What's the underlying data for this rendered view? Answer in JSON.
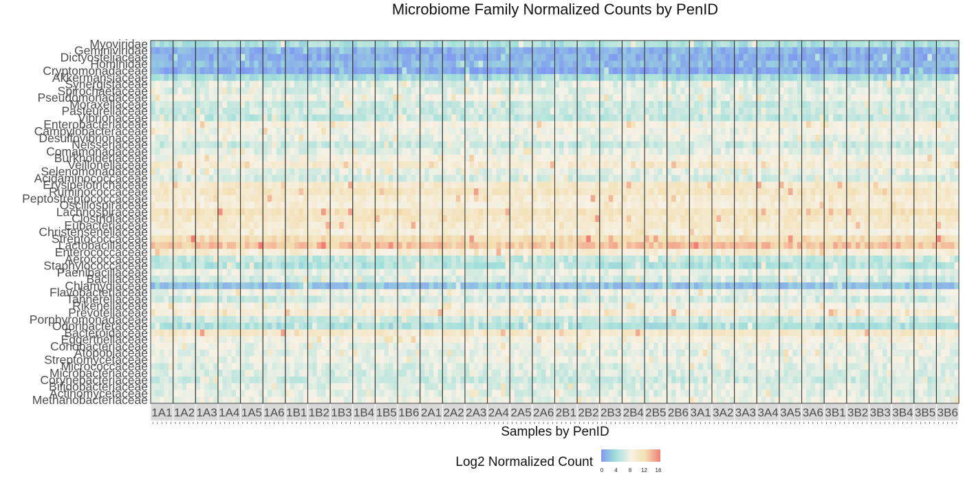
{
  "chart_data": {
    "type": "heatmap",
    "title": "Microbiome Family Normalized Counts by PenID",
    "xlabel": "Samples by PenID",
    "ylabel": "",
    "legend": {
      "title": "Log2 Normalized Count",
      "placement": "bottom",
      "ticks": [
        "0",
        "4",
        "8",
        "12",
        "16"
      ],
      "range": [
        0,
        16
      ],
      "colors": [
        "#7f9af0",
        "#a2e0da",
        "#f6f2e6",
        "#f3dfb1",
        "#f27f77"
      ]
    },
    "facets": [
      "1A1",
      "1A2",
      "1A3",
      "1A4",
      "1A5",
      "1A6",
      "1B1",
      "1B2",
      "1B3",
      "1B4",
      "1B5",
      "1B6",
      "2A1",
      "2A2",
      "2A3",
      "2A4",
      "2A5",
      "2A6",
      "2B1",
      "2B2",
      "2B3",
      "2B4",
      "2B5",
      "2B6",
      "3A1",
      "3A2",
      "3A3",
      "3A4",
      "3A5",
      "3A6",
      "3B1",
      "3B2",
      "3B3",
      "3B4",
      "3B5",
      "3B6"
    ],
    "samples_per_facet": 5,
    "families": [
      "Myoviridae",
      "Geminiviridae",
      "Dictyosteliaceae",
      "Hominidae",
      "Cryptomonadaceae",
      "Akkermansiaceae",
      "Synergistaceae",
      "Spirochaetaceae",
      "Pseudomonadaceae",
      "Moraxellaceae",
      "Pasteurellaceae",
      "Vibrionaceae",
      "Enterobacteriaceae",
      "Campylobacteraceae",
      "Desulfovibrionaceae",
      "Neisseriaceae",
      "Comamonadaceae",
      "Burkholderiaceae",
      "Veillonellaceae",
      "Selenomonadaceae",
      "Acidaminococcaceae",
      "Erysipelotrichaceae",
      "Ruminococcaceae",
      "Peptostreptococcaceae",
      "Oscillospiraceae",
      "Lachnospiraceae",
      "Clostridiaceae",
      "Eubacteriaceae",
      "Christensenellaceae",
      "Streptococcaceae",
      "Lactobacillaceae",
      "Enterococcaceae",
      "Aerococcaceae",
      "Staphylococcaceae",
      "Paenibacillaceae",
      "Bacillaceae",
      "Chlamydiaceae",
      "Flavobacteriaceae",
      "Tannerellaceae",
      "Rikenellaceae",
      "Prevotellaceae",
      "Porphyromonadaceae",
      "Odoribacteraceae",
      "Bacteroidaceae",
      "Eggerthellaceae",
      "Coriobacteriaceae",
      "Atopobiaceae",
      "Streptomycetaceae",
      "Micrococcaceae",
      "Microbacteriaceae",
      "Corynebacteriaceae",
      "Bifidobacteriaceae",
      "Actinomycetaceae",
      "Methanobacteriaceae"
    ],
    "family_mean_log2": [
      4.5,
      1.5,
      1.2,
      2.0,
      1.0,
      4.0,
      7.0,
      6.8,
      7.5,
      6.0,
      6.2,
      5.5,
      8.5,
      7.8,
      7.4,
      6.0,
      7.0,
      8.2,
      9.5,
      7.2,
      6.5,
      9.8,
      10.5,
      9.5,
      9.0,
      11.0,
      10.2,
      9.6,
      8.8,
      11.5,
      13.0,
      9.2,
      5.5,
      4.8,
      7.5,
      6.5,
      2.5,
      7.8,
      6.2,
      8.0,
      9.2,
      6.0,
      4.5,
      10.0,
      8.2,
      7.4,
      7.2,
      7.6,
      6.8,
      6.6,
      6.0,
      6.9,
      7.0,
      7.6
    ]
  }
}
